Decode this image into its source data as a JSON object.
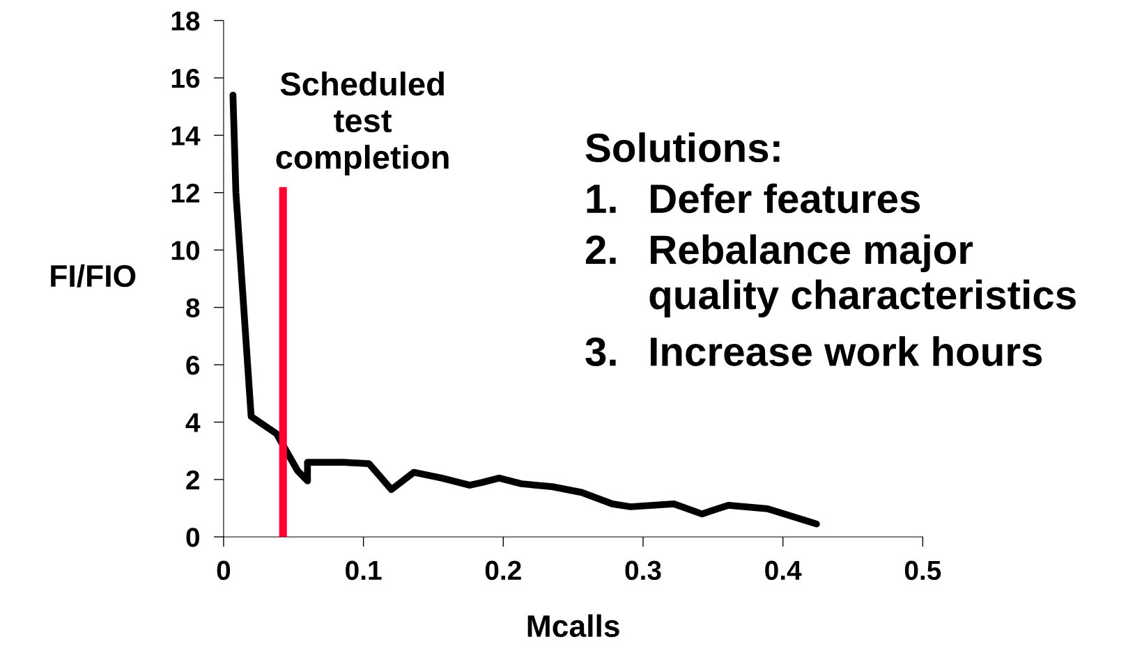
{
  "chart_data": {
    "type": "line",
    "xlabel": "Mcalls",
    "ylabel": "FI/FIO",
    "series": [
      {
        "color": "#000000",
        "x": [
          0.0067,
          0.0088,
          0.0197,
          0.0378,
          0.053,
          0.06,
          0.06,
          0.086,
          0.104,
          0.12,
          0.136,
          0.156,
          0.176,
          0.185,
          0.197,
          0.213,
          0.235,
          0.256,
          0.278,
          0.291,
          0.322,
          0.342,
          0.361,
          0.389,
          0.424
        ],
        "values": [
          15.4,
          12.0,
          4.2,
          3.6,
          2.3,
          1.95,
          2.6,
          2.6,
          2.55,
          1.65,
          2.25,
          2.05,
          1.8,
          1.9,
          2.05,
          1.85,
          1.75,
          1.55,
          1.15,
          1.05,
          1.15,
          0.8,
          1.1,
          0.98,
          0.45
        ]
      }
    ],
    "xlim": [
      0,
      0.5
    ],
    "xticks": [
      0,
      0.1,
      0.2,
      0.3,
      0.4,
      0.5
    ],
    "ylim": [
      0,
      18
    ],
    "yticks": [
      0,
      2,
      4,
      6,
      8,
      10,
      12,
      14,
      16,
      18
    ],
    "grid": false,
    "legend": false,
    "marker": "none",
    "line_style": "solid",
    "ref_lines": [
      {
        "axis": "x",
        "value": 0.0425,
        "label": "Scheduled\ntest\ncompletion",
        "color": "#ff0033"
      }
    ],
    "annotations": [
      "Solutions:",
      "1.  Defer features",
      "2.  Rebalance major\nquality characteristics",
      "3.  Increase work hours"
    ]
  }
}
